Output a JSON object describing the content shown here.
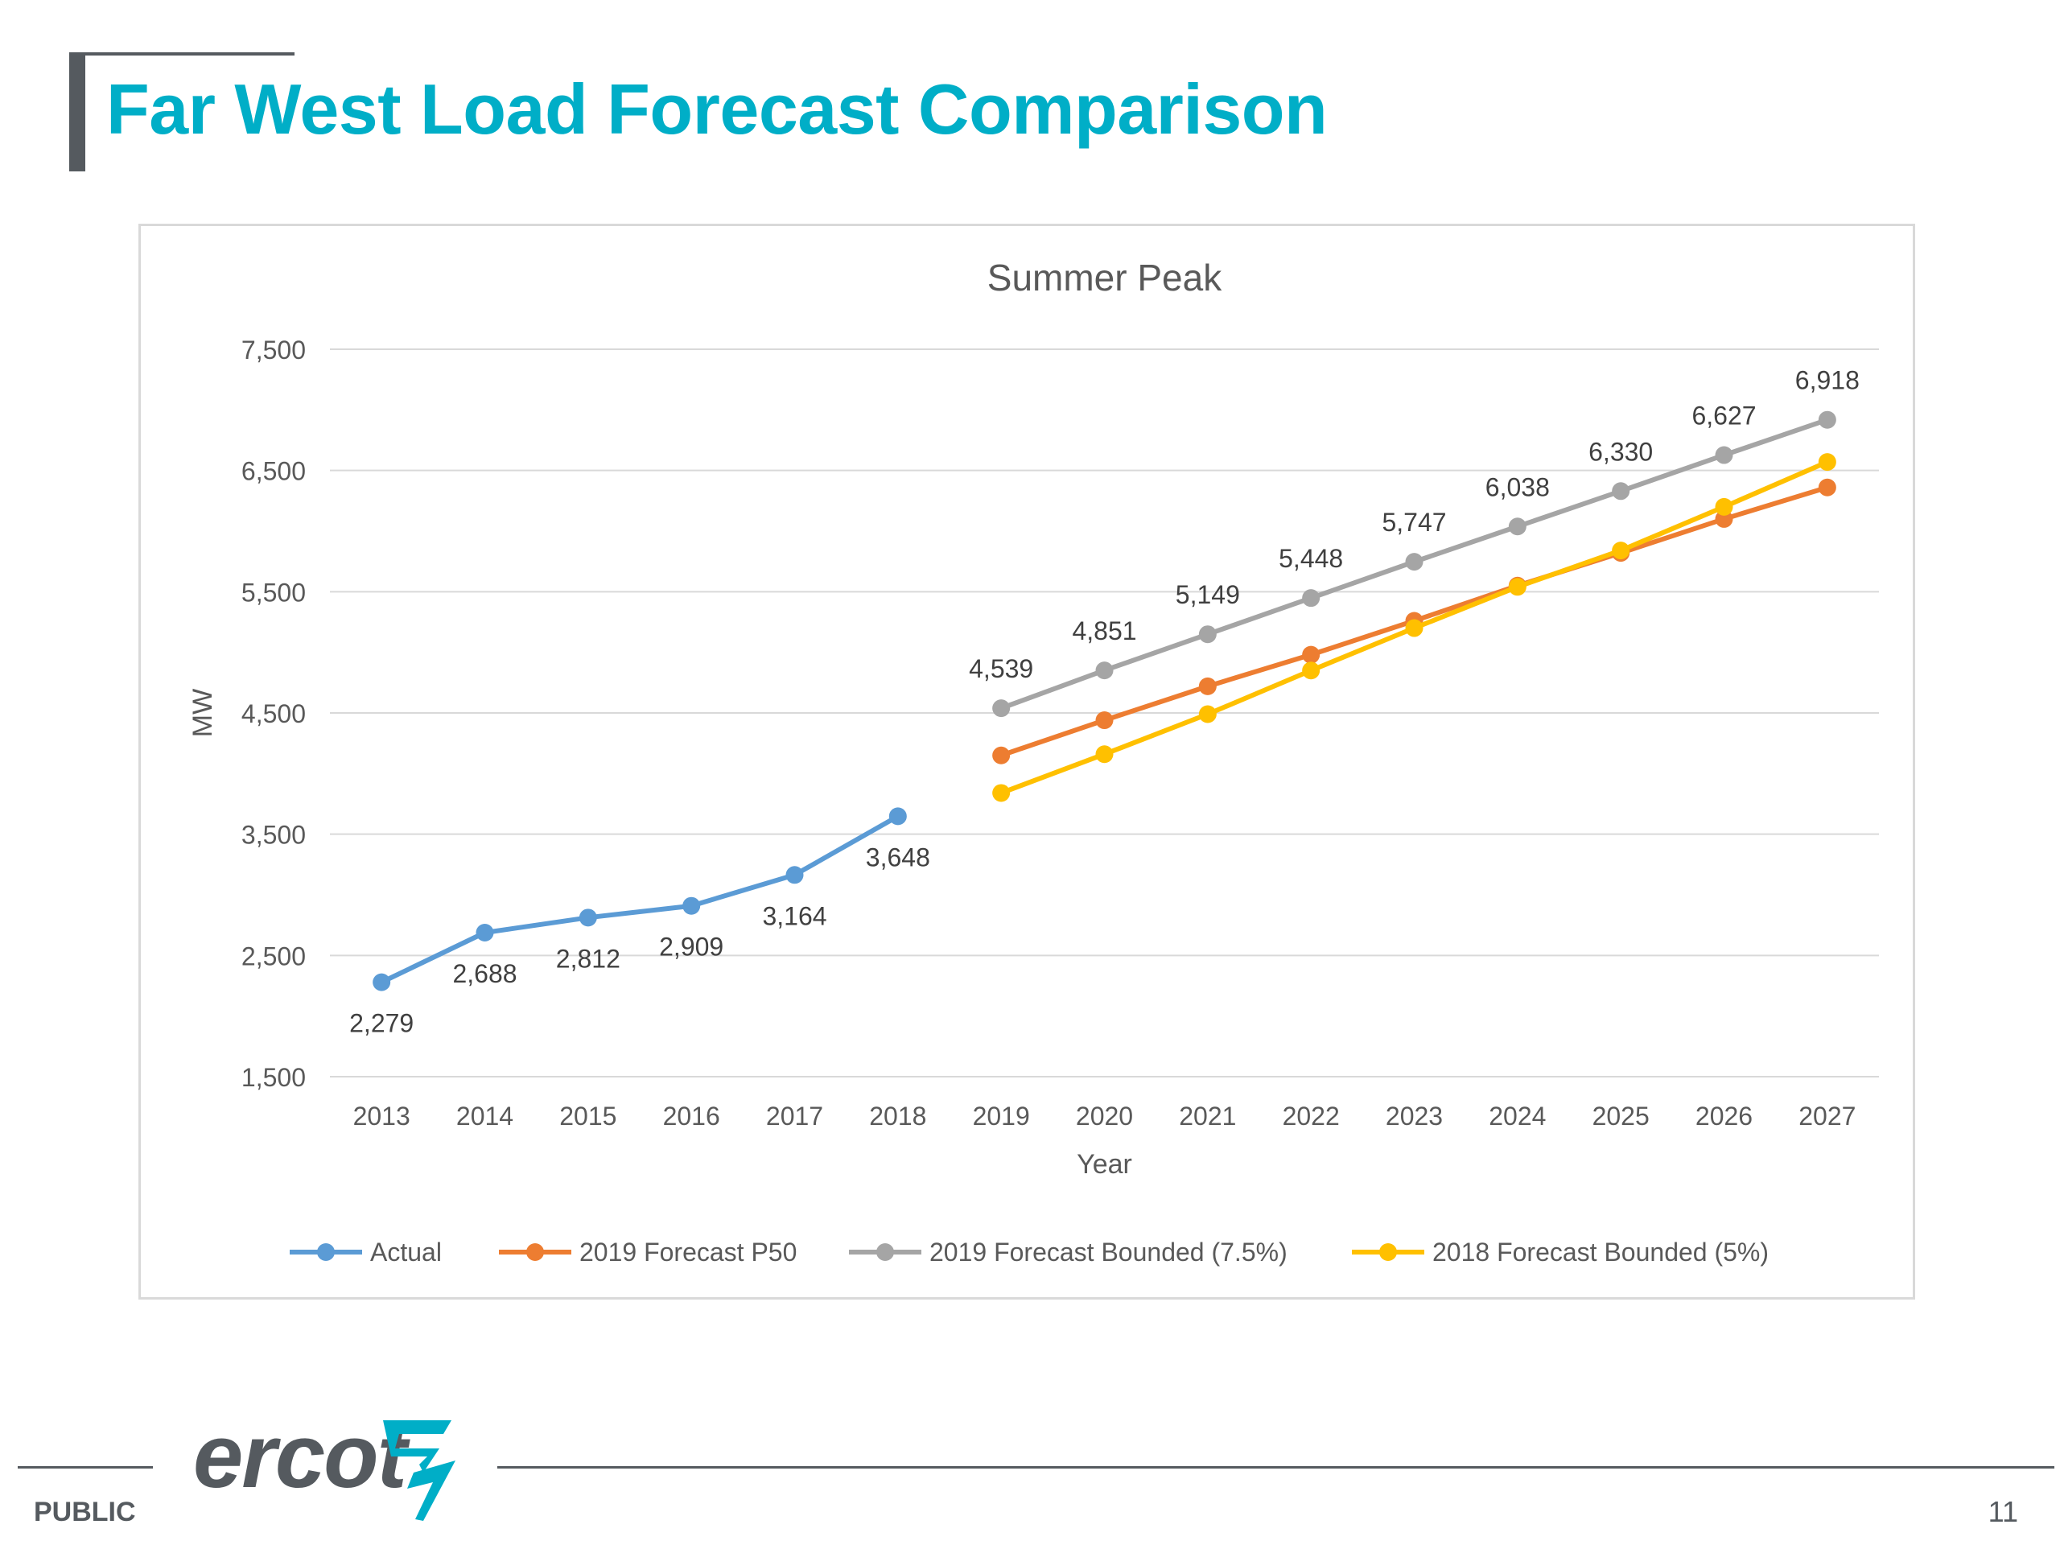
{
  "slide": {
    "title": "Far West Load Forecast Comparison",
    "footer_label": "PUBLIC",
    "page_number": "11",
    "logo_text": "ercot"
  },
  "colors": {
    "title": "#00aec7",
    "accent_gray": "#555a5f",
    "actual": "#5b9bd5",
    "forecast_p50": "#ed7d31",
    "forecast_bounded_75": "#a5a5a5",
    "forecast_2018": "#ffc000"
  },
  "chart_data": {
    "type": "line",
    "title": "Summer Peak",
    "xlabel": "Year",
    "ylabel": "MW",
    "ylim": [
      1500,
      7500
    ],
    "yticks": [
      1500,
      2500,
      3500,
      4500,
      5500,
      6500,
      7500
    ],
    "ytick_labels": [
      "1,500",
      "2,500",
      "3,500",
      "4,500",
      "5,500",
      "6,500",
      "7,500"
    ],
    "categories": [
      "2013",
      "2014",
      "2015",
      "2016",
      "2017",
      "2018",
      "2019",
      "2020",
      "2021",
      "2022",
      "2023",
      "2024",
      "2025",
      "2026",
      "2027"
    ],
    "grid": true,
    "legend_position": "bottom",
    "series": [
      {
        "name": "Actual",
        "color": "#5b9bd5",
        "values": [
          2279,
          2688,
          2812,
          2909,
          3164,
          3648,
          null,
          null,
          null,
          null,
          null,
          null,
          null,
          null,
          null
        ],
        "labels": [
          "2,279",
          "2,688",
          "2,812",
          "2,909",
          "3,164",
          "3,648",
          null,
          null,
          null,
          null,
          null,
          null,
          null,
          null,
          null
        ],
        "label_position": "below"
      },
      {
        "name": "2019 Forecast P50",
        "color": "#ed7d31",
        "values": [
          null,
          null,
          null,
          null,
          null,
          null,
          4150,
          4440,
          4720,
          4980,
          5260,
          5550,
          5820,
          6100,
          6360
        ],
        "labels": null
      },
      {
        "name": "2019 Forecast Bounded (7.5%)",
        "color": "#a5a5a5",
        "values": [
          null,
          null,
          null,
          null,
          null,
          null,
          4539,
          4851,
          5149,
          5448,
          5747,
          6038,
          6330,
          6627,
          6918
        ],
        "labels": [
          null,
          null,
          null,
          null,
          null,
          null,
          "4,539",
          "4,851",
          "5,149",
          "5,448",
          "5,747",
          "6,038",
          "6,330",
          "6,627",
          "6,918"
        ],
        "label_position": "above"
      },
      {
        "name": "2018 Forecast Bounded (5%)",
        "color": "#ffc000",
        "values": [
          null,
          null,
          null,
          null,
          null,
          null,
          3840,
          4160,
          4490,
          4850,
          5200,
          5540,
          5840,
          6200,
          6570
        ],
        "labels": null
      }
    ]
  }
}
